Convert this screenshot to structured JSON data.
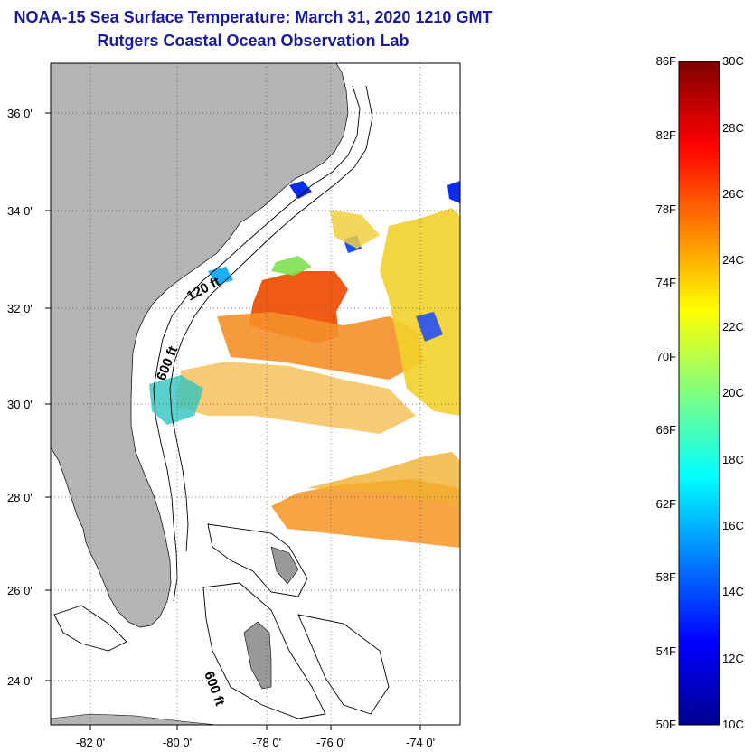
{
  "header": {
    "title": "NOAA-15 Sea Surface Temperature:  March 31, 2020 1210 GMT",
    "subtitle": "Rutgers Coastal Ocean Observation Lab"
  },
  "map": {
    "lat_labels": [
      "36 0'",
      "34 0'",
      "32 0'",
      "30 0'",
      "28 0'",
      "26 0'",
      "24 0'"
    ],
    "lon_labels": [
      "-82 0'",
      "-80 0'",
      "-78 0'",
      "-76 0'",
      "-74 0'"
    ],
    "contour_labels": [
      "120 ft",
      "600 ft",
      "600 ft"
    ],
    "land_color": "#b4b4b4",
    "no_data_color": "#ffffff"
  },
  "colorbar": {
    "fahrenheit_labels": [
      "86F",
      "82F",
      "78F",
      "74F",
      "70F",
      "66F",
      "62F",
      "58F",
      "54F",
      "50F"
    ],
    "celsius_labels": [
      "30C",
      "28C",
      "26C",
      "24C",
      "22C",
      "20C",
      "18C",
      "16C",
      "14C",
      "12C",
      "10C"
    ],
    "colormap": "jet",
    "range_celsius": [
      10,
      30
    ]
  }
}
